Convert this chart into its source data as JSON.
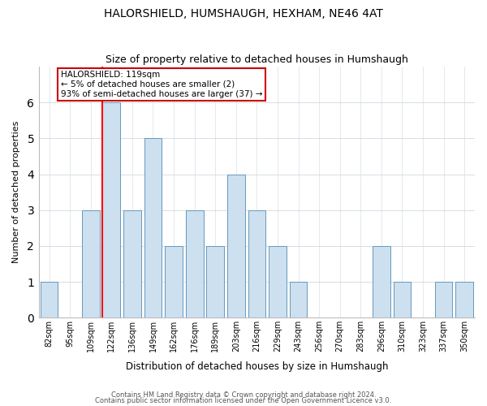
{
  "title": "HALORSHIELD, HUMSHAUGH, HEXHAM, NE46 4AT",
  "subtitle": "Size of property relative to detached houses in Humshaugh",
  "xlabel": "Distribution of detached houses by size in Humshaugh",
  "ylabel": "Number of detached properties",
  "bin_labels": [
    "82sqm",
    "95sqm",
    "109sqm",
    "122sqm",
    "136sqm",
    "149sqm",
    "162sqm",
    "176sqm",
    "189sqm",
    "203sqm",
    "216sqm",
    "229sqm",
    "243sqm",
    "256sqm",
    "270sqm",
    "283sqm",
    "296sqm",
    "310sqm",
    "323sqm",
    "337sqm",
    "350sqm"
  ],
  "bar_heights": [
    1,
    0,
    3,
    6,
    3,
    5,
    2,
    3,
    2,
    4,
    3,
    2,
    1,
    0,
    0,
    0,
    2,
    1,
    0,
    1,
    1
  ],
  "bar_color": "#cce0f0",
  "bar_edge_color": "#6699bb",
  "grid_color": "#d0d8e0",
  "background_color": "#ffffff",
  "red_line_index": 3,
  "annotation_text": "HALORSHIELD: 119sqm\n← 5% of detached houses are smaller (2)\n93% of semi-detached houses are larger (37) →",
  "annotation_box_color": "#ffffff",
  "annotation_box_edge": "#cc0000",
  "ylim": [
    0,
    7
  ],
  "yticks": [
    0,
    1,
    2,
    3,
    4,
    5,
    6,
    7
  ],
  "title_fontsize": 10,
  "subtitle_fontsize": 9,
  "footer_line1": "Contains HM Land Registry data © Crown copyright and database right 2024.",
  "footer_line2": "Contains public sector information licensed under the Open Government Licence v3.0."
}
